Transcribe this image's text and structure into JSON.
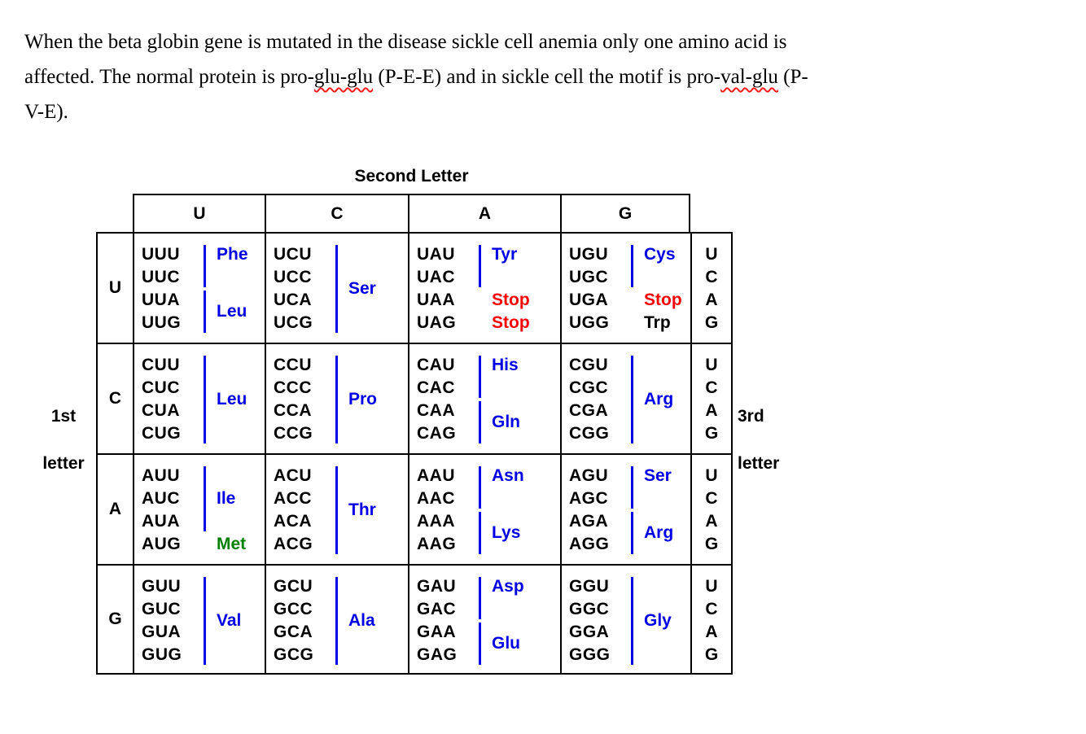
{
  "intro": {
    "line1": "When the beta globin gene is mutated in the disease sickle cell anemia only one amino acid is",
    "line2_part1": "affected.  The normal protein is pro-",
    "line2_wavy1": "glu-glu",
    "line2_part2": " (P-E-E) and in sickle cell the motif is pro-",
    "line2_wavy2": "val-glu",
    "line2_part3": " (P-",
    "line3": "V-E)."
  },
  "labels": {
    "second_letter": "Second Letter",
    "first_letter_line1": "1st",
    "first_letter_line2": "letter",
    "third_letter_line1": "3rd",
    "third_letter_line2": "letter"
  },
  "colors": {
    "amino_blue": "#0000e6",
    "stop_red": "#ff0000",
    "met_green": "#008000",
    "codon_black": "#000000",
    "wavy_underline_red": "#ff1a1a"
  },
  "table": {
    "column_headers": [
      "U",
      "C",
      "A",
      "G"
    ],
    "third_letters": [
      "U",
      "C",
      "A",
      "G"
    ],
    "rows": [
      {
        "first": "U",
        "cells": [
          {
            "groups": [
              {
                "codons": [
                  "UUU",
                  "UUC"
                ],
                "label": "Phe",
                "color": "blue",
                "bar": true,
                "align": "top"
              },
              {
                "codons": [
                  "UUA",
                  "UUG"
                ],
                "label": "Leu",
                "color": "blue",
                "bar": true,
                "align": "center"
              }
            ]
          },
          {
            "groups": [
              {
                "codons": [
                  "UCU",
                  "UCC",
                  "UCA",
                  "UCG"
                ],
                "label": "Ser",
                "color": "blue",
                "bar": true,
                "align": "center"
              }
            ]
          },
          {
            "groups": [
              {
                "codons": [
                  "UAU",
                  "UAC"
                ],
                "label": "Tyr",
                "color": "blue",
                "bar": true,
                "align": "top"
              },
              {
                "codons": [
                  "UAA"
                ],
                "label": "Stop",
                "color": "red",
                "bar": false,
                "align": "center"
              },
              {
                "codons": [
                  "UAG"
                ],
                "label": "Stop",
                "color": "red",
                "bar": false,
                "align": "center"
              }
            ]
          },
          {
            "groups": [
              {
                "codons": [
                  "UGU",
                  "UGC"
                ],
                "label": "Cys",
                "color": "blue",
                "bar": true,
                "align": "top"
              },
              {
                "codons": [
                  "UGA"
                ],
                "label": "Stop",
                "color": "red",
                "bar": false,
                "align": "center"
              },
              {
                "codons": [
                  "UGG"
                ],
                "label": "Trp",
                "color": "black",
                "bar": false,
                "align": "center"
              }
            ]
          }
        ]
      },
      {
        "first": "C",
        "cells": [
          {
            "groups": [
              {
                "codons": [
                  "CUU",
                  "CUC",
                  "CUA",
                  "CUG"
                ],
                "label": "Leu",
                "color": "blue",
                "bar": true,
                "align": "center"
              }
            ]
          },
          {
            "groups": [
              {
                "codons": [
                  "CCU",
                  "CCC",
                  "CCA",
                  "CCG"
                ],
                "label": "Pro",
                "color": "blue",
                "bar": true,
                "align": "center"
              }
            ]
          },
          {
            "groups": [
              {
                "codons": [
                  "CAU",
                  "CAC"
                ],
                "label": "His",
                "color": "blue",
                "bar": true,
                "align": "top"
              },
              {
                "codons": [
                  "CAA",
                  "CAG"
                ],
                "label": "Gln",
                "color": "blue",
                "bar": true,
                "align": "center"
              }
            ]
          },
          {
            "groups": [
              {
                "codons": [
                  "CGU",
                  "CGC",
                  "CGA",
                  "CGG"
                ],
                "label": "Arg",
                "color": "blue",
                "bar": true,
                "align": "center"
              }
            ]
          }
        ]
      },
      {
        "first": "A",
        "cells": [
          {
            "groups": [
              {
                "codons": [
                  "AUU",
                  "AUC",
                  "AUA"
                ],
                "label": "Ile",
                "color": "blue",
                "bar": true,
                "align": "center"
              },
              {
                "codons": [
                  "AUG"
                ],
                "label": "Met",
                "color": "green",
                "bar": false,
                "align": "center"
              }
            ]
          },
          {
            "groups": [
              {
                "codons": [
                  "ACU",
                  "ACC",
                  "ACA",
                  "ACG"
                ],
                "label": "Thr",
                "color": "blue",
                "bar": true,
                "align": "center"
              }
            ]
          },
          {
            "groups": [
              {
                "codons": [
                  "AAU",
                  "AAC"
                ],
                "label": "Asn",
                "color": "blue",
                "bar": true,
                "align": "top"
              },
              {
                "codons": [
                  "AAA",
                  "AAG"
                ],
                "label": "Lys",
                "color": "blue",
                "bar": true,
                "align": "center"
              }
            ]
          },
          {
            "groups": [
              {
                "codons": [
                  "AGU",
                  "AGC"
                ],
                "label": "Ser",
                "color": "blue",
                "bar": true,
                "align": "top"
              },
              {
                "codons": [
                  "AGA",
                  "AGG"
                ],
                "label": "Arg",
                "color": "blue",
                "bar": true,
                "align": "center"
              }
            ]
          }
        ]
      },
      {
        "first": "G",
        "cells": [
          {
            "groups": [
              {
                "codons": [
                  "GUU",
                  "GUC",
                  "GUA",
                  "GUG"
                ],
                "label": "Val",
                "color": "blue",
                "bar": true,
                "align": "center"
              }
            ]
          },
          {
            "groups": [
              {
                "codons": [
                  "GCU",
                  "GCC",
                  "GCA",
                  "GCG"
                ],
                "label": "Ala",
                "color": "blue",
                "bar": true,
                "align": "center"
              }
            ]
          },
          {
            "groups": [
              {
                "codons": [
                  "GAU",
                  "GAC"
                ],
                "label": "Asp",
                "color": "blue",
                "bar": true,
                "align": "top"
              },
              {
                "codons": [
                  "GAA",
                  "GAG"
                ],
                "label": "Glu",
                "color": "blue",
                "bar": true,
                "align": "center"
              }
            ]
          },
          {
            "groups": [
              {
                "codons": [
                  "GGU",
                  "GGC",
                  "GGA",
                  "GGG"
                ],
                "label": "Gly",
                "color": "blue",
                "bar": true,
                "align": "center"
              }
            ]
          }
        ]
      }
    ]
  }
}
